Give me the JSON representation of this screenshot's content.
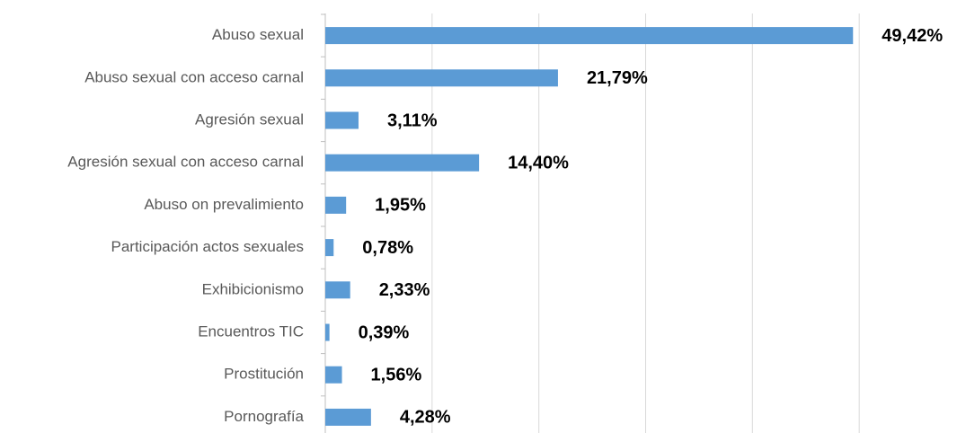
{
  "chart_data": {
    "type": "barh",
    "categories": [
      "Abuso sexual",
      "Abuso sexual con acceso carnal",
      "Agresión sexual",
      "Agresión sexual con acceso carnal",
      "Abuso on prevalimiento",
      "Participación actos sexuales",
      "Exhibicionismo",
      "Encuentros TIC",
      "Prostitución",
      "Pornografía"
    ],
    "values": [
      49.42,
      21.79,
      3.11,
      14.4,
      1.95,
      0.78,
      2.33,
      0.39,
      1.56,
      4.28
    ],
    "value_labels": [
      "49,42%",
      "21,79%",
      "3,11%",
      "14,40%",
      "1,95%",
      "0,78%",
      "2,33%",
      "0,39%",
      "1,56%",
      "4,28%"
    ],
    "color": "#5b9bd5",
    "xlim": [
      0,
      60
    ],
    "xticks": [
      0,
      10,
      20,
      30,
      40,
      50,
      60
    ],
    "grid": true
  }
}
